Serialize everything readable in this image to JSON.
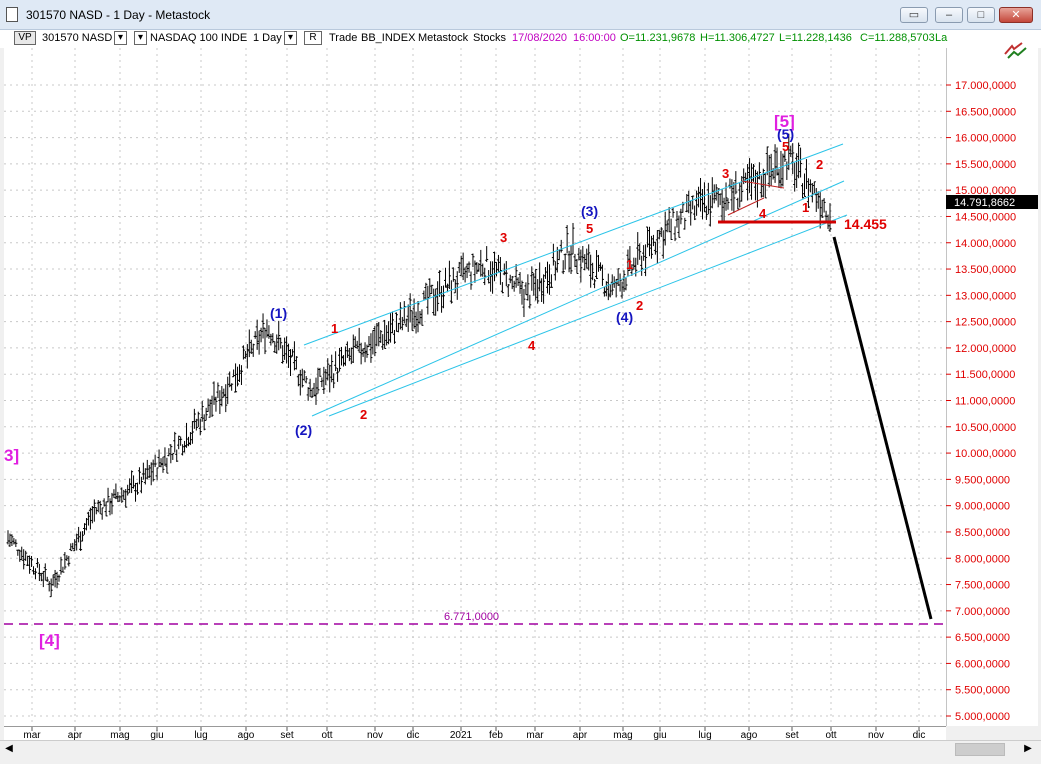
{
  "window": {
    "title": "301570 NASD - 1 Day - Metastock"
  },
  "toolbar": {
    "vp": "VP",
    "symbol": "301570 NASD",
    "name": "NASDAQ 100 INDE",
    "period": "1 Day",
    "r_label": "R",
    "mode": "Trade",
    "index": "BB_INDEX",
    "source": "Metastock",
    "type": "Stocks",
    "datetime": "17/08/2020",
    "time": "16:00:00",
    "open": "O=11.231,9678",
    "high": "H=11.306,4727",
    "low": "L=11.228,1436",
    "close": "C=11.288,5703",
    "extra": "La"
  },
  "y_axis": {
    "ticks": [
      "17.000,0000",
      "16.500,0000",
      "16.000,0000",
      "15.500,0000",
      "15.000,0000",
      "14.500,0000",
      "14.000,0000",
      "13.500,0000",
      "13.000,0000",
      "12.500,0000",
      "12.000,0000",
      "11.500,0000",
      "11.000,0000",
      "10.500,0000",
      "10.000,0000",
      "9.500,0000",
      "9.000,0000",
      "8.500,0000",
      "8.000,0000",
      "7.500,0000",
      "7.000,0000",
      "6.500,0000",
      "6.000,0000",
      "5.500,0000",
      "5.000,0000"
    ],
    "current_price": "14.791,8662"
  },
  "x_axis": {
    "labels": [
      "mar",
      "apr",
      "mag",
      "giu",
      "lug",
      "ago",
      "set",
      "ott",
      "nov",
      "dic",
      "2021",
      "feb",
      "mar",
      "apr",
      "mag",
      "giu",
      "lug",
      "ago",
      "set",
      "ott",
      "nov",
      "dic"
    ]
  },
  "annotations": {
    "support_level": "6.771,0000",
    "target_level": "14.455",
    "wave_3_major": "3]",
    "wave_4_major": "[4]",
    "wave_5_major": "[5]",
    "w1": "(1)",
    "w2": "(2)",
    "w3": "(3)",
    "w4": "(4)",
    "w5": "(5)",
    "r1a": "1",
    "r2a": "2",
    "r3a": "3",
    "r4a": "4",
    "r1b": "1",
    "r2b": "2",
    "r3b": "3",
    "r4b": "4",
    "r5b": "5",
    "r5a": "5",
    "r1c": "1",
    "r2c": "2"
  },
  "colors": {
    "magenta": "#e020e0",
    "blue": "#1515c0",
    "red": "#e00000",
    "channel": "#2cc4e8",
    "axis_red": "#e00000"
  },
  "chart_data": {
    "type": "line",
    "title": "301570 NASD - 1 Day",
    "xlabel": "",
    "ylabel": "",
    "ylim": [
      4750,
      17600
    ],
    "x": [
      "mar",
      "apr",
      "mag",
      "giu",
      "lug",
      "ago",
      "set",
      "ott",
      "nov",
      "dic",
      "2021",
      "feb",
      "mar",
      "apr",
      "mag",
      "giu",
      "lug",
      "ago",
      "set",
      "ott"
    ],
    "series": [
      {
        "values": [
          8400,
          7500,
          8900,
          9400,
          10200,
          11200,
          12400,
          11200,
          11900,
          12400,
          13100,
          13600,
          13000,
          13900,
          13100,
          14100,
          14700,
          15000,
          15600,
          14600
        ]
      }
    ]
  }
}
